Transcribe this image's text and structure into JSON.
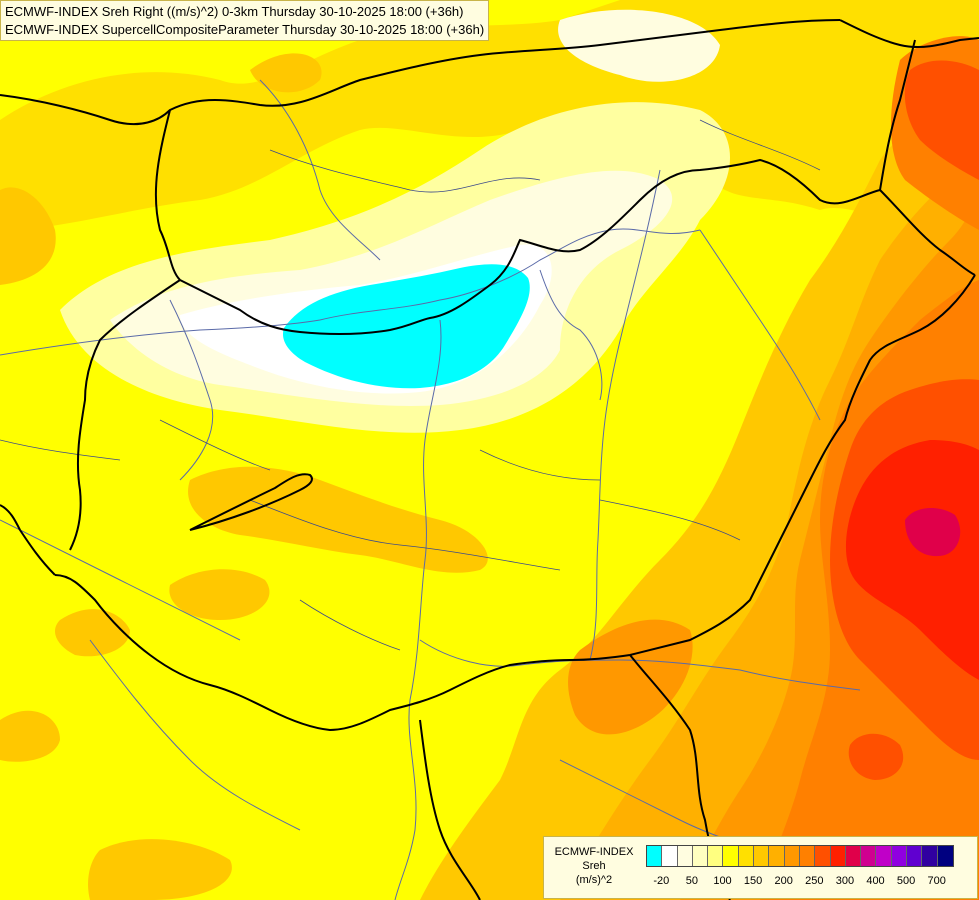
{
  "title": {
    "line1": "ECMWF-INDEX Sreh Right ((m/s)^2) 0-3km Thursday 30-10-2025 18:00 (+36h)",
    "line2": "ECMWF-INDEX SupercellCompositeParameter Thursday 30-10-2025 18:00 (+36h)"
  },
  "legend": {
    "line1": "ECMWF-INDEX",
    "line2": "Sreh",
    "line3": "(m/s)^2",
    "colors": [
      "#00ffff",
      "#ffffff",
      "#fffde0",
      "#ffffc0",
      "#ffff80",
      "#ffff00",
      "#ffe000",
      "#ffc800",
      "#ffb000",
      "#ff9800",
      "#ff8000",
      "#ff5000",
      "#ff2000",
      "#e0004a",
      "#d00090",
      "#c000c8",
      "#9000e0",
      "#6000d0",
      "#3000a0",
      "#000080"
    ],
    "tick_labels": [
      "-20",
      "50",
      "100",
      "150",
      "200",
      "250",
      "300",
      "400",
      "500",
      "700"
    ]
  }
}
